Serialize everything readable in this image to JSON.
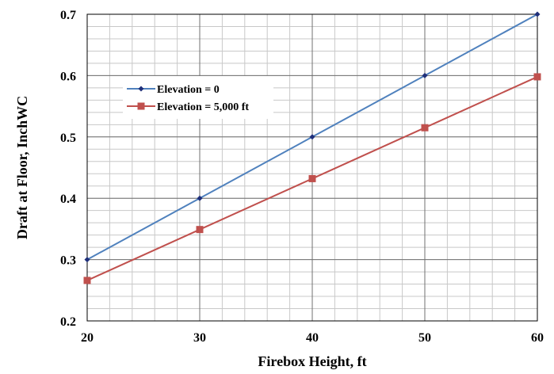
{
  "chart_data": {
    "type": "line",
    "xlabel": "Firebox Height, ft",
    "ylabel": "Draft at Floor, InchWC",
    "xlim": [
      20,
      60
    ],
    "ylim": [
      0.2,
      0.7
    ],
    "x_ticks": [
      "20",
      "30",
      "40",
      "50",
      "60"
    ],
    "y_ticks": [
      "0.2",
      "0.3",
      "0.4",
      "0.5",
      "0.6",
      "0.7"
    ],
    "grid": true,
    "minor_grid": true,
    "legend_position": "upper-left-inside",
    "series": [
      {
        "name": "Elevation = 0",
        "color": "#4F81BD",
        "marker_color": "#1F2F7A",
        "marker": "diamond",
        "x": [
          20,
          30,
          40,
          50,
          60
        ],
        "y": [
          0.3,
          0.4,
          0.5,
          0.6,
          0.7
        ]
      },
      {
        "name": "Elevation = 5,000 ft",
        "color": "#C0504D",
        "marker_color": "#C0504D",
        "marker": "square",
        "x": [
          20,
          30,
          40,
          50,
          60
        ],
        "y": [
          0.266,
          0.349,
          0.432,
          0.515,
          0.598
        ]
      }
    ]
  }
}
